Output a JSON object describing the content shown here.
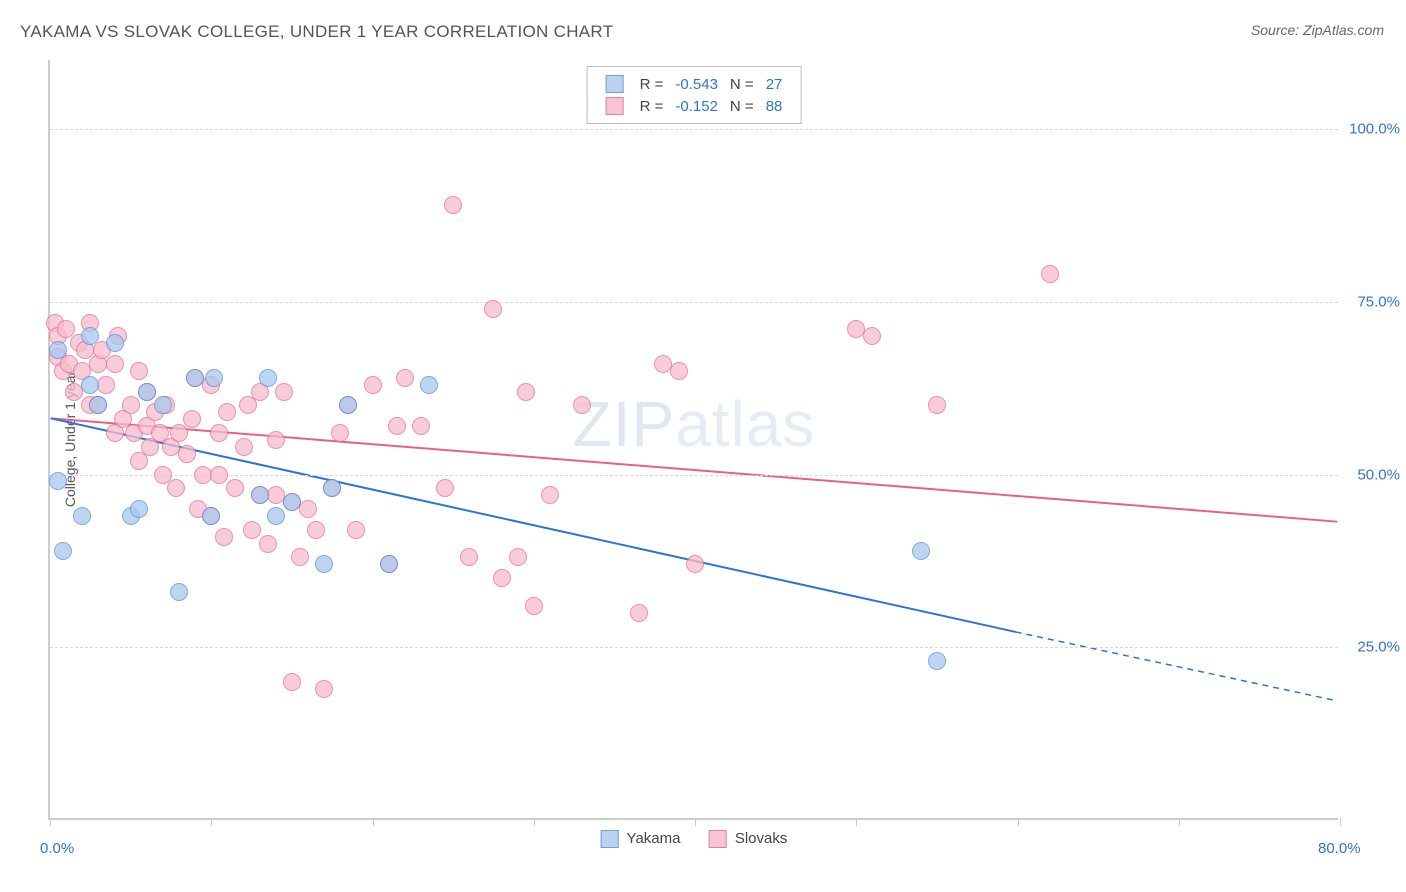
{
  "chart": {
    "type": "scatter",
    "title": "YAKAMA VS SLOVAK COLLEGE, UNDER 1 YEAR CORRELATION CHART",
    "source": "Source: ZipAtlas.com",
    "y_axis_title": "College, Under 1 year",
    "watermark_main": "ZIP",
    "watermark_sub": "atlas",
    "background_color": "#ffffff",
    "grid_color": "#d9d9d9",
    "axis_color": "#cccccc",
    "tick_label_color": "#2f74d0",
    "title_color": "#555555",
    "title_fontsize": 17,
    "label_fontsize": 15,
    "aspect_width": 1290,
    "aspect_height": 760,
    "xlim": [
      0,
      80
    ],
    "ylim": [
      0,
      110
    ],
    "x_ticks": [
      0,
      10,
      20,
      30,
      40,
      50,
      60,
      70,
      80
    ],
    "x_tick_labels_visible": {
      "0": "0.0%",
      "80": "80.0%"
    },
    "y_ticks": [
      25,
      50,
      75,
      100
    ],
    "y_tick_labels": {
      "25": "25.0%",
      "50": "50.0%",
      "75": "75.0%",
      "100": "100.0%"
    },
    "point_radius": 9,
    "point_fill_opacity": 0.35,
    "point_stroke_width": 1,
    "series": [
      {
        "name": "Yakama",
        "color_fill": "#a8c8ed",
        "color_stroke": "#5a8fd6",
        "legend_sq_fill": "#bcd3ef",
        "legend_sq_border": "#6f9fd8",
        "points": [
          [
            0.5,
            68
          ],
          [
            2.5,
            70
          ],
          [
            0.8,
            39
          ],
          [
            2.0,
            44
          ],
          [
            2.5,
            63
          ],
          [
            3.0,
            60
          ],
          [
            4.0,
            69
          ],
          [
            5.0,
            44
          ],
          [
            5.5,
            45
          ],
          [
            6.0,
            62
          ],
          [
            7.0,
            60
          ],
          [
            8.0,
            33
          ],
          [
            9.0,
            64
          ],
          [
            10.0,
            44
          ],
          [
            10.2,
            64
          ],
          [
            13.5,
            64
          ],
          [
            13.0,
            47
          ],
          [
            14.0,
            44
          ],
          [
            15.0,
            46
          ],
          [
            17.0,
            37
          ],
          [
            17.5,
            48
          ],
          [
            23.5,
            63
          ],
          [
            21.0,
            37
          ],
          [
            18.5,
            60
          ],
          [
            55.0,
            23
          ],
          [
            54.0,
            39
          ],
          [
            0.5,
            49
          ]
        ],
        "trend": {
          "x1": 0,
          "y1": 58,
          "x2": 60,
          "y2": 27,
          "color": "#2f74d0",
          "width": 2
        },
        "trend_ext": {
          "x1": 60,
          "y1": 27,
          "x2": 80,
          "y2": 17,
          "color": "#2f74d0",
          "width": 1.5,
          "dash": "6 5"
        },
        "stats": {
          "R": "-0.543",
          "N": "27"
        }
      },
      {
        "name": "Slovaks",
        "color_fill": "#f6bccd",
        "color_stroke": "#e86d93",
        "legend_sq_fill": "#f6c5d3",
        "legend_sq_border": "#e67fa0",
        "points": [
          [
            0.3,
            72
          ],
          [
            0.5,
            70
          ],
          [
            0.5,
            67
          ],
          [
            0.8,
            65
          ],
          [
            1.0,
            71
          ],
          [
            1.2,
            66
          ],
          [
            1.5,
            62
          ],
          [
            1.8,
            69
          ],
          [
            2.0,
            65
          ],
          [
            2.2,
            68
          ],
          [
            2.5,
            72
          ],
          [
            2.5,
            60
          ],
          [
            3.0,
            66
          ],
          [
            3.0,
            60
          ],
          [
            3.2,
            68
          ],
          [
            3.5,
            63
          ],
          [
            4.0,
            66
          ],
          [
            4.0,
            56
          ],
          [
            4.2,
            70
          ],
          [
            4.5,
            58
          ],
          [
            5.0,
            60
          ],
          [
            5.2,
            56
          ],
          [
            5.5,
            65
          ],
          [
            5.5,
            52
          ],
          [
            6.0,
            62
          ],
          [
            6.0,
            57
          ],
          [
            6.2,
            54
          ],
          [
            6.5,
            59
          ],
          [
            6.8,
            56
          ],
          [
            7.0,
            50
          ],
          [
            7.2,
            60
          ],
          [
            7.5,
            54
          ],
          [
            7.8,
            48
          ],
          [
            8.0,
            56
          ],
          [
            8.5,
            53
          ],
          [
            8.8,
            58
          ],
          [
            9.0,
            64
          ],
          [
            9.2,
            45
          ],
          [
            9.5,
            50
          ],
          [
            10.0,
            44
          ],
          [
            10.0,
            63
          ],
          [
            10.5,
            56
          ],
          [
            10.8,
            41
          ],
          [
            11.0,
            59
          ],
          [
            11.5,
            48
          ],
          [
            12.0,
            54
          ],
          [
            12.3,
            60
          ],
          [
            12.5,
            42
          ],
          [
            13.0,
            62
          ],
          [
            13.0,
            47
          ],
          [
            13.5,
            40
          ],
          [
            14.0,
            55
          ],
          [
            14.0,
            47
          ],
          [
            14.5,
            62
          ],
          [
            15.0,
            46
          ],
          [
            15.0,
            20
          ],
          [
            15.5,
            38
          ],
          [
            16.0,
            45
          ],
          [
            16.5,
            42
          ],
          [
            17.0,
            19
          ],
          [
            17.5,
            48
          ],
          [
            18.0,
            56
          ],
          [
            18.5,
            60
          ],
          [
            19.0,
            42
          ],
          [
            20.0,
            63
          ],
          [
            21.0,
            37
          ],
          [
            21.5,
            57
          ],
          [
            22.0,
            64
          ],
          [
            23.0,
            57
          ],
          [
            24.5,
            48
          ],
          [
            25.0,
            89
          ],
          [
            26.0,
            38
          ],
          [
            27.5,
            74
          ],
          [
            28.0,
            35
          ],
          [
            29.0,
            38
          ],
          [
            29.5,
            62
          ],
          [
            30.0,
            31
          ],
          [
            31.0,
            47
          ],
          [
            33.0,
            60
          ],
          [
            36.5,
            30
          ],
          [
            38.0,
            66
          ],
          [
            39.0,
            65
          ],
          [
            40.0,
            37
          ],
          [
            50.0,
            71
          ],
          [
            51.0,
            70
          ],
          [
            55.0,
            60
          ],
          [
            62.0,
            79
          ],
          [
            10.5,
            50
          ]
        ],
        "trend": {
          "x1": 0,
          "y1": 58,
          "x2": 80,
          "y2": 43,
          "color": "#e86088",
          "width": 2
        },
        "stats": {
          "R": "-0.152",
          "N": "88"
        }
      }
    ],
    "legend_labels": {
      "r": "R =",
      "n": "N ="
    },
    "bottom_legend": [
      "Yakama",
      "Slovaks"
    ]
  }
}
